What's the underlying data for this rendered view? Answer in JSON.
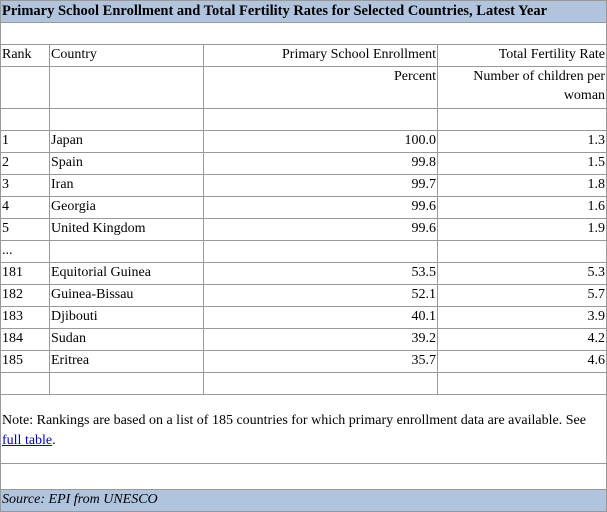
{
  "title": "Primary School Enrollment and Total Fertility Rates for Selected Countries, Latest Year",
  "header": [
    "Rank",
    "Country",
    "Primary School Enrollment",
    "Total Fertility Rate"
  ],
  "units": [
    "Percent",
    "Number of children per woman"
  ],
  "rows_top": [
    [
      "1",
      "Japan",
      "100.0",
      "1.3"
    ],
    [
      "2",
      "Spain",
      "99.8",
      "1.5"
    ],
    [
      "3",
      "Iran",
      "99.7",
      "1.8"
    ],
    [
      "4",
      "Georgia",
      "99.6",
      "1.6"
    ],
    [
      "5",
      "United Kingdom",
      "99.6",
      "1.9"
    ]
  ],
  "ellipsis": "...",
  "rows_bottom": [
    [
      "181",
      "Equitorial Guinea",
      "53.5",
      "5.3"
    ],
    [
      "182",
      "Guinea-Bissau",
      "52.1",
      "5.7"
    ],
    [
      "183",
      "Djibouti",
      "40.1",
      "3.9"
    ],
    [
      "184",
      "Sudan",
      "39.2",
      "4.2"
    ],
    [
      "185",
      "Eritrea",
      "35.7",
      "4.6"
    ]
  ],
  "note": {
    "text": "Note: Rankings are based on a list of 185 countries for which primary enrollment data are available. See ",
    "link": "full table",
    "end": "."
  },
  "source": "Source: EPI from UNESCO"
}
